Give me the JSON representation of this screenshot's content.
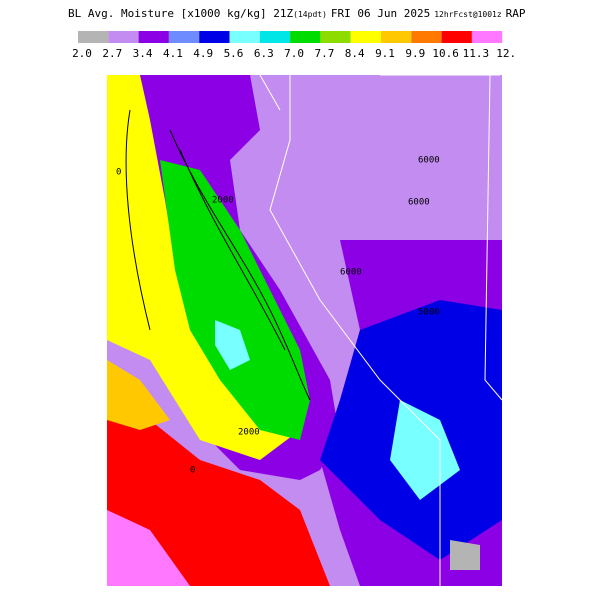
{
  "header": {
    "title": "BL Avg. Moisture [x1000 kg/kg] 21Z",
    "local_time": "(14pdt)",
    "date": "FRI 06 Jun 2025",
    "forecast": "12hrFcst@1001z",
    "model": "RAP"
  },
  "colorbar": {
    "labels": [
      "2.0",
      "2.7",
      "3.4",
      "4.1",
      "4.9",
      "5.6",
      "6.3",
      "7.0",
      "7.7",
      "8.4",
      "9.1",
      "9.9",
      "10.6",
      "11.3",
      "12."
    ],
    "colors": [
      "#b4b4b4",
      "#c38cf0",
      "#8c00e6",
      "#6e8cff",
      "#0000e6",
      "#78ffff",
      "#00e6e6",
      "#00dc00",
      "#8cdc00",
      "#ffff00",
      "#ffc800",
      "#ff7800",
      "#ff0000",
      "#ff78ff"
    ]
  },
  "contour_labels": [
    "6000",
    "6000",
    "6000",
    "5000",
    "2000",
    "2000",
    "0",
    "0"
  ]
}
